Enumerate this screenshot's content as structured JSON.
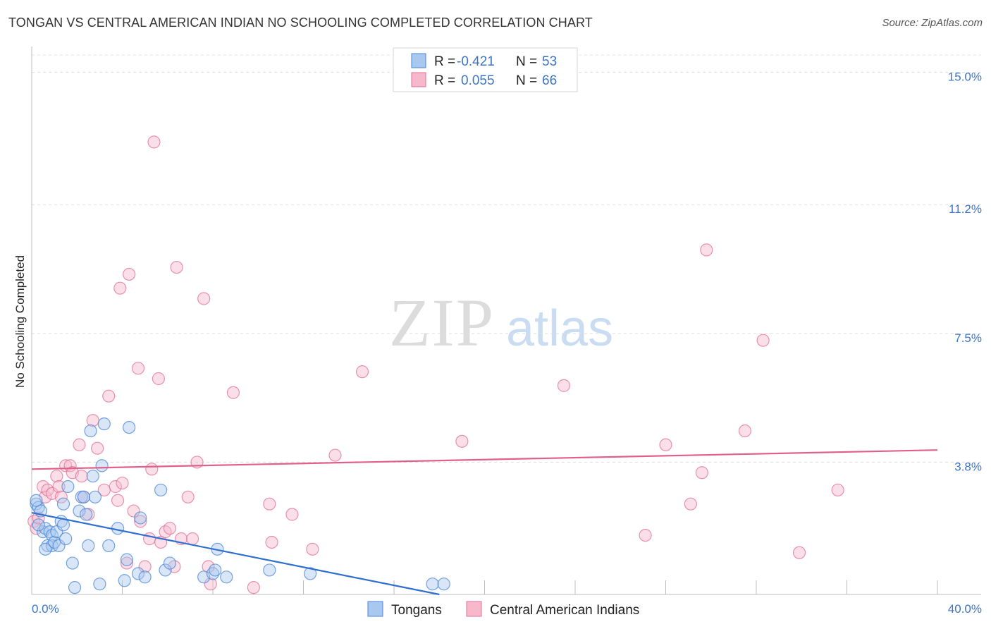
{
  "title": "TONGAN VS CENTRAL AMERICAN INDIAN NO SCHOOLING COMPLETED CORRELATION CHART",
  "source": "Source: ZipAtlas.com",
  "watermark": {
    "zip": "ZIP",
    "atlas": "atlas"
  },
  "colors": {
    "blue_fill": "#a9c8f0",
    "blue_stroke": "#4a86d6",
    "blue_line": "#2f6fd0",
    "pink_fill": "#f7b8cc",
    "pink_stroke": "#e07096",
    "pink_line": "#e0608a",
    "tick_text": "#3d74c5"
  },
  "legend": {
    "rows": [
      {
        "r_label": "R =",
        "r_value": "-0.421",
        "n_label": "N =",
        "n_value": "53"
      },
      {
        "r_label": "R =",
        "r_value": "0.055",
        "n_label": "N =",
        "n_value": "66"
      }
    ]
  },
  "bottom_legend": [
    "Tongans",
    "Central American Indians"
  ],
  "chart_data": {
    "type": "scatter",
    "title": "TONGAN VS CENTRAL AMERICAN INDIAN NO SCHOOLING COMPLETED CORRELATION CHART",
    "xlabel": "",
    "ylabel": "No Schooling Completed",
    "xlim": [
      0,
      40
    ],
    "ylim": [
      0,
      15.5
    ],
    "y_ticks": [
      3.8,
      7.5,
      11.2,
      15.0
    ],
    "y_tick_labels": [
      "3.8%",
      "7.5%",
      "11.2%",
      "15.0%"
    ],
    "x_tick_labels": [
      "0.0%",
      "40.0%"
    ],
    "series": [
      {
        "name": "Tongans",
        "r": -0.421,
        "n": 53,
        "trend": {
          "x0": 0,
          "y0": 2.35,
          "x1": 18,
          "y1": 0.0
        },
        "points": [
          [
            0.2,
            2.6
          ],
          [
            0.3,
            2.5
          ],
          [
            0.4,
            2.4
          ],
          [
            0.2,
            2.7
          ],
          [
            0.5,
            1.8
          ],
          [
            0.6,
            1.9
          ],
          [
            0.8,
            1.8
          ],
          [
            0.9,
            1.7
          ],
          [
            0.7,
            1.4
          ],
          [
            0.9,
            1.4
          ],
          [
            1.0,
            1.5
          ],
          [
            1.1,
            1.8
          ],
          [
            1.2,
            1.4
          ],
          [
            1.3,
            2.1
          ],
          [
            1.4,
            2.0
          ],
          [
            1.5,
            1.6
          ],
          [
            1.4,
            2.6
          ],
          [
            1.6,
            3.1
          ],
          [
            1.8,
            0.9
          ],
          [
            1.9,
            0.2
          ],
          [
            2.1,
            2.4
          ],
          [
            2.2,
            2.8
          ],
          [
            2.3,
            2.8
          ],
          [
            2.4,
            2.3
          ],
          [
            2.5,
            1.4
          ],
          [
            2.6,
            4.7
          ],
          [
            2.7,
            3.4
          ],
          [
            2.8,
            2.8
          ],
          [
            3.0,
            0.3
          ],
          [
            3.1,
            3.7
          ],
          [
            3.2,
            4.9
          ],
          [
            3.4,
            1.4
          ],
          [
            3.8,
            1.9
          ],
          [
            4.1,
            0.4
          ],
          [
            4.2,
            1.0
          ],
          [
            4.3,
            4.8
          ],
          [
            4.7,
            0.6
          ],
          [
            4.8,
            2.2
          ],
          [
            5.0,
            0.5
          ],
          [
            5.7,
            3.0
          ],
          [
            5.9,
            0.7
          ],
          [
            6.1,
            0.9
          ],
          [
            7.6,
            0.5
          ],
          [
            8.0,
            0.6
          ],
          [
            8.1,
            0.7
          ],
          [
            8.2,
            1.3
          ],
          [
            8.6,
            0.5
          ],
          [
            10.5,
            0.7
          ],
          [
            12.3,
            0.6
          ],
          [
            17.7,
            0.3
          ],
          [
            18.2,
            0.3
          ],
          [
            0.3,
            2.0
          ],
          [
            0.6,
            1.3
          ]
        ]
      },
      {
        "name": "Central American Indians",
        "r": 0.055,
        "n": 66,
        "trend": {
          "x0": 0,
          "y0": 3.6,
          "x1": 40,
          "y1": 4.15
        },
        "points": [
          [
            0.1,
            2.1
          ],
          [
            0.2,
            1.9
          ],
          [
            0.3,
            2.2
          ],
          [
            0.5,
            3.1
          ],
          [
            0.6,
            2.8
          ],
          [
            0.7,
            3.0
          ],
          [
            0.9,
            2.9
          ],
          [
            1.1,
            3.4
          ],
          [
            1.2,
            3.1
          ],
          [
            1.3,
            2.8
          ],
          [
            1.5,
            3.7
          ],
          [
            1.7,
            3.7
          ],
          [
            1.8,
            3.5
          ],
          [
            2.1,
            4.3
          ],
          [
            2.2,
            3.4
          ],
          [
            2.3,
            2.8
          ],
          [
            2.5,
            2.3
          ],
          [
            2.7,
            5.0
          ],
          [
            2.9,
            4.2
          ],
          [
            3.2,
            3.0
          ],
          [
            3.4,
            5.7
          ],
          [
            3.7,
            3.1
          ],
          [
            3.8,
            2.7
          ],
          [
            3.9,
            8.8
          ],
          [
            4.0,
            3.2
          ],
          [
            4.2,
            0.9
          ],
          [
            4.3,
            9.2
          ],
          [
            4.5,
            2.4
          ],
          [
            4.7,
            6.5
          ],
          [
            4.8,
            2.1
          ],
          [
            5.0,
            0.8
          ],
          [
            5.2,
            1.6
          ],
          [
            5.3,
            3.6
          ],
          [
            5.4,
            13.0
          ],
          [
            5.6,
            6.2
          ],
          [
            5.7,
            1.5
          ],
          [
            5.9,
            1.8
          ],
          [
            6.1,
            1.9
          ],
          [
            6.3,
            0.8
          ],
          [
            6.4,
            9.4
          ],
          [
            6.6,
            1.6
          ],
          [
            6.9,
            2.8
          ],
          [
            7.1,
            1.6
          ],
          [
            7.3,
            3.8
          ],
          [
            7.6,
            8.5
          ],
          [
            7.8,
            0.8
          ],
          [
            7.9,
            0.3
          ],
          [
            8.9,
            5.8
          ],
          [
            9.8,
            0.2
          ],
          [
            10.5,
            2.6
          ],
          [
            10.6,
            1.5
          ],
          [
            11.5,
            2.3
          ],
          [
            12.4,
            1.3
          ],
          [
            13.4,
            4.0
          ],
          [
            14.6,
            6.4
          ],
          [
            19.0,
            4.4
          ],
          [
            23.5,
            6.0
          ],
          [
            27.1,
            1.7
          ],
          [
            28.0,
            4.3
          ],
          [
            29.1,
            2.6
          ],
          [
            29.6,
            3.5
          ],
          [
            29.8,
            9.9
          ],
          [
            31.5,
            4.7
          ],
          [
            32.3,
            7.3
          ],
          [
            33.9,
            1.2
          ],
          [
            35.6,
            3.0
          ]
        ]
      }
    ]
  }
}
